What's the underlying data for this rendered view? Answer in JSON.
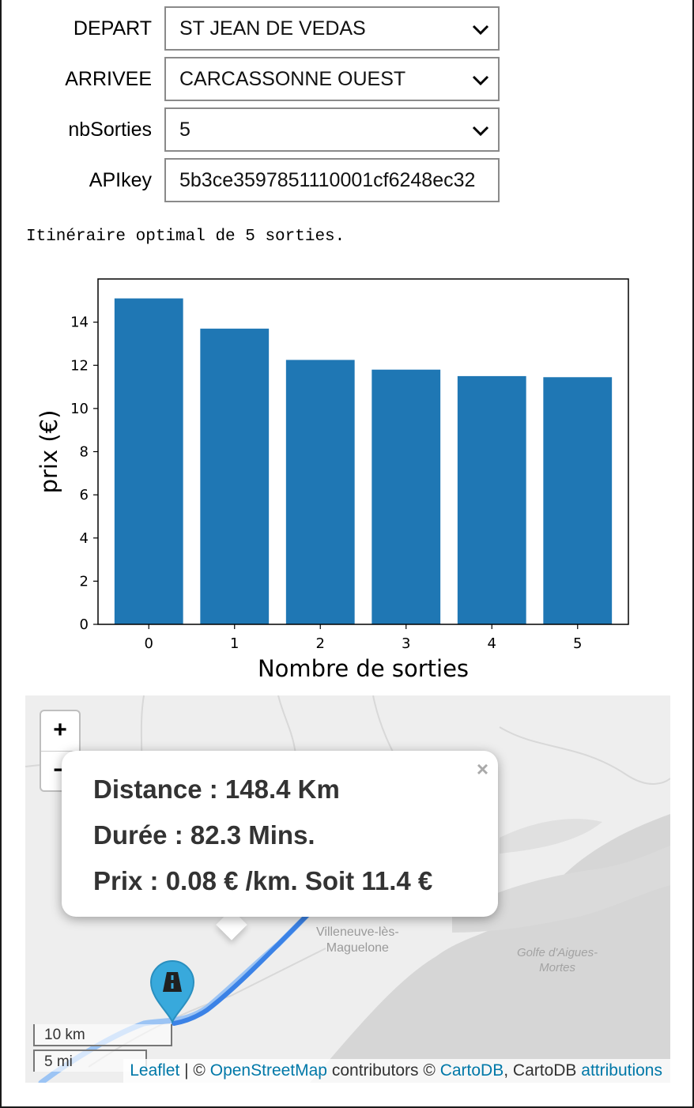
{
  "form": {
    "depart": {
      "label": "DEPART",
      "value": "ST JEAN DE VEDAS"
    },
    "arrivee": {
      "label": "ARRIVEE",
      "value": "CARCASSONNE OUEST"
    },
    "nb_sorties": {
      "label": "nbSorties",
      "value": "5"
    },
    "api_key": {
      "label": "APIkey",
      "value": "5b3ce3597851110001cf6248ec32"
    }
  },
  "status_text": "Itinéraire optimal de 5 sorties.",
  "chart_data": {
    "type": "bar",
    "categories": [
      "0",
      "1",
      "2",
      "3",
      "4",
      "5"
    ],
    "values": [
      15.1,
      13.7,
      12.25,
      11.8,
      11.5,
      11.45
    ],
    "xlabel": "Nombre de sorties",
    "ylabel": "prix (€)",
    "ylim": [
      0,
      16
    ],
    "yticks": [
      0,
      2,
      4,
      6,
      8,
      10,
      12,
      14
    ],
    "bar_color": "#1f77b4",
    "grid": false
  },
  "map": {
    "zoom_in": "+",
    "zoom_out": "−",
    "popup": {
      "close": "×",
      "distance": "Distance : 148.4 Km",
      "duree": "Durée : 82.3 Mins.",
      "prix": "Prix : 0.08 € /km. Soit 11.4 €"
    },
    "places": {
      "town": "Villeneuve-lès-\nMaguelone",
      "gulf": "Golfe d'Aigues-\nMortes"
    },
    "scale": {
      "km": "10 km",
      "mi": "5 mi"
    },
    "attribution": {
      "leaflet": "Leaflet",
      "sep": " | © ",
      "osm": "OpenStreetMap",
      "contrib": " contributors © ",
      "cartodb_link": "CartoDB",
      "cartodb_text": ", CartoDB ",
      "attributions": "attributions"
    },
    "route_color": "#3b82e6",
    "marker_color": "#38a9dc",
    "marker_icon": "road-icon"
  }
}
